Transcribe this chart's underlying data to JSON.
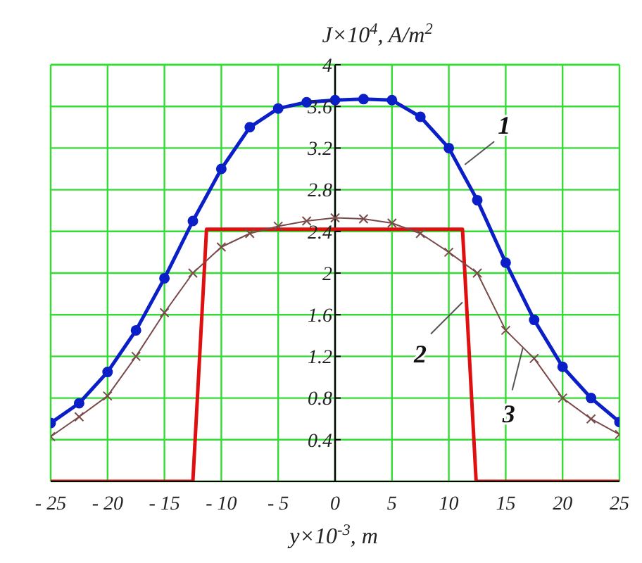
{
  "chart_data": {
    "type": "line",
    "xlabel": "y×10$^{-3}$, m",
    "ylabel": "J×10$^{4}$, A/m$^{2}$",
    "xlim": [
      -25,
      25
    ],
    "xticks": [
      {
        "value": -25,
        "label": "- 25"
      },
      {
        "value": -20,
        "label": "- 20"
      },
      {
        "value": -15,
        "label": "- 15"
      },
      {
        "value": -10,
        "label": "- 10"
      },
      {
        "value": -5,
        "label": "- 5"
      },
      0,
      5,
      10,
      15,
      20,
      25
    ],
    "ylim": [
      0,
      4
    ],
    "yticks": [
      {
        "value": 0,
        "label": null
      },
      0.4,
      0.8,
      1.2,
      1.6,
      2,
      2.4,
      2.8,
      3.2,
      3.6,
      4
    ],
    "grid": true,
    "series": [
      {
        "color": "#0a1fc8",
        "marker": "circle",
        "x": [
          -25,
          -22.5,
          -20,
          -17.5,
          -15,
          -12.5,
          -10,
          -7.5,
          -5,
          -2.5,
          0,
          2.5,
          5,
          7.5,
          10,
          12.5,
          15,
          17.5,
          20,
          22.5,
          25
        ],
        "values": [
          0.56,
          0.75,
          1.05,
          1.45,
          1.95,
          2.5,
          3.0,
          3.4,
          3.58,
          3.64,
          3.66,
          3.67,
          3.66,
          3.5,
          3.2,
          2.7,
          2.1,
          1.55,
          1.1,
          0.8,
          0.57
        ]
      },
      {
        "color": "#e01010",
        "marker": "none",
        "x": [
          -25,
          -12.5,
          -11.3,
          11.2,
          12.4,
          25
        ],
        "values": [
          0,
          0,
          2.42,
          2.42,
          0,
          0
        ]
      },
      {
        "color": "#7a4a4a",
        "marker": "cross",
        "x": [
          -25,
          -22.5,
          -20,
          -17.5,
          -15,
          -12.5,
          -10,
          -7.5,
          -5,
          -2.5,
          0,
          2.5,
          5,
          7.5,
          10,
          12.5,
          15,
          17.5,
          20,
          22.5,
          25
        ],
        "values": [
          0.43,
          0.62,
          0.82,
          1.2,
          1.62,
          2.0,
          2.25,
          2.38,
          2.45,
          2.5,
          2.53,
          2.52,
          2.48,
          2.38,
          2.2,
          2.0,
          1.45,
          1.18,
          0.8,
          0.6,
          0.45
        ]
      }
    ],
    "annotations": [
      {
        "text": "1",
        "x": 11.4,
        "y": 3.04
      },
      {
        "text": "2",
        "x": 11.2,
        "y": 1.72
      },
      {
        "text": "3",
        "x": 16.5,
        "y": 1.28
      }
    ]
  }
}
